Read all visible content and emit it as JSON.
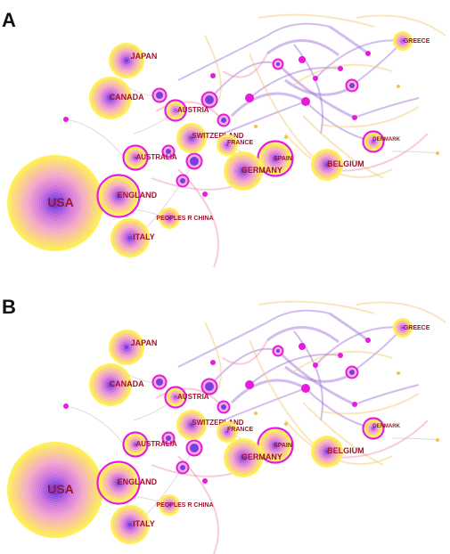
{
  "panels": [
    {
      "label": "A"
    },
    {
      "label": "B"
    }
  ],
  "colors": {
    "ring_outer": "#fff04a",
    "ring_mid": "#f2a6c8",
    "ring_inner": "#7a3ee0",
    "centrality_ring": "#e81adb",
    "label": "#a0142a",
    "link_purple": "#9c6bd6",
    "link_orange": "#f5c76e",
    "link_pink": "#f08bb5"
  },
  "countries": [
    {
      "id": "usa",
      "name": "USA"
    },
    {
      "id": "japan",
      "name": "JAPAN"
    },
    {
      "id": "canada",
      "name": "CANADA"
    },
    {
      "id": "austria",
      "name": "AUSTRIA"
    },
    {
      "id": "switzerland",
      "name": "SWITZERLAND"
    },
    {
      "id": "france",
      "name": "FRANCE"
    },
    {
      "id": "australia",
      "name": "AUSTRALIA"
    },
    {
      "id": "spain",
      "name": "SPAIN"
    },
    {
      "id": "germany",
      "name": "GERMANY"
    },
    {
      "id": "belgium",
      "name": "BELGIUM"
    },
    {
      "id": "greece",
      "name": "GREECE"
    },
    {
      "id": "denmark",
      "name": "DENMARK"
    },
    {
      "id": "england",
      "name": "ENGLAND"
    },
    {
      "id": "peoples_r_china",
      "name": "PEOPLES R CHINA"
    },
    {
      "id": "italy",
      "name": "ITALY"
    }
  ]
}
